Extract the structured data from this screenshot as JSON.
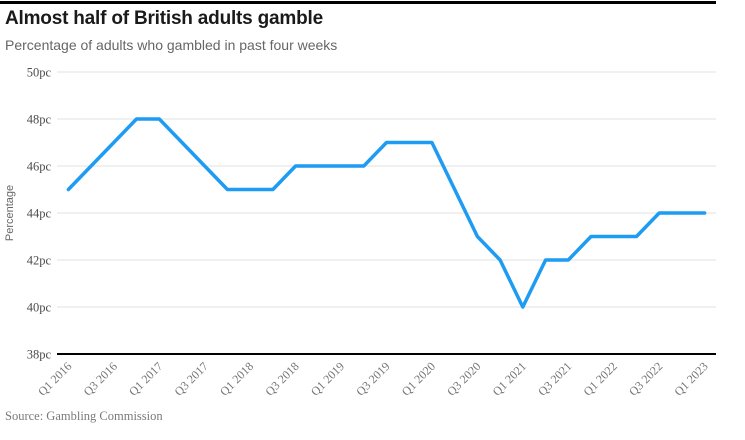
{
  "chart_data": {
    "type": "line",
    "title": "Almost half of British adults gamble",
    "subtitle": "Percentage of adults who gambled in past four weeks",
    "source": "Source: Gambling Commission",
    "ylabel": "Percentage",
    "ylim": [
      38,
      50
    ],
    "grid": true,
    "legend": "none",
    "y_ticks": [
      {
        "value": 50,
        "label": "50pc"
      },
      {
        "value": 48,
        "label": "48pc"
      },
      {
        "value": 46,
        "label": "46pc"
      },
      {
        "value": 44,
        "label": "44pc"
      },
      {
        "value": 42,
        "label": "42pc"
      },
      {
        "value": 40,
        "label": "40pc"
      },
      {
        "value": 38,
        "label": "38pc"
      }
    ],
    "x": [
      "Q1 2016",
      "Q2 2016",
      "Q3 2016",
      "Q4 2016",
      "Q1 2017",
      "Q2 2017",
      "Q3 2017",
      "Q4 2017",
      "Q1 2018",
      "Q2 2018",
      "Q3 2018",
      "Q4 2018",
      "Q1 2019",
      "Q2 2019",
      "Q3 2019",
      "Q4 2019",
      "Q1 2020",
      "Q2 2020",
      "Q3 2020",
      "Q4 2020",
      "Q1 2021",
      "Q2 2021",
      "Q3 2021",
      "Q4 2021",
      "Q1 2022",
      "Q2 2022",
      "Q3 2022",
      "Q4 2022",
      "Q1 2023"
    ],
    "x_label_every": 2,
    "series": [
      {
        "name": "Percentage of adults who gambled in past four weeks",
        "values": [
          45,
          46,
          47,
          48,
          48,
          47,
          46,
          45,
          45,
          45,
          46,
          46,
          46,
          46,
          47,
          47,
          47,
          45,
          43,
          42,
          40,
          42,
          42,
          43,
          43,
          43,
          44,
          44,
          44
        ]
      }
    ],
    "line_color": "#1e9bf3",
    "grid_color": "#e2e2e2",
    "axis_color": "#000000"
  }
}
